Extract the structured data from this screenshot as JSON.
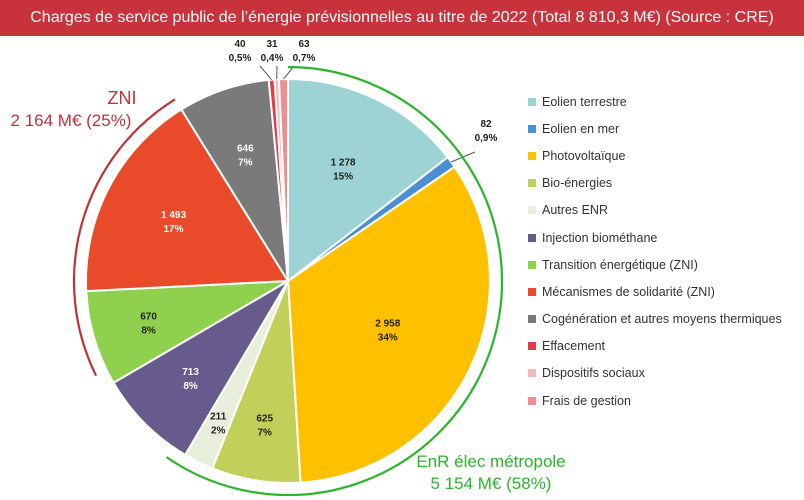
{
  "title": "Charges de service public de l’énergie prévisionnelles au titre de 2022 (Total 8 810,3 M€) (Source : CRE)",
  "colors": {
    "title_bg": "#c8323a",
    "zni": "#c0313a",
    "enr": "#2bb52b"
  },
  "groups": {
    "zni": {
      "name": "ZNI",
      "total": "2 164 M€ (25%)"
    },
    "enr": {
      "name": "EnR élec métropole",
      "total": "5 154 M€ (58%)"
    }
  },
  "chart_data": {
    "type": "pie",
    "title": "Charges de service public de l’énergie prévisionnelles au titre de 2022 (Total 8 810,3 M€) (Source : CRE)",
    "legend_position": "right",
    "slices": [
      {
        "name": "Eolien terrestre",
        "value": 1278,
        "value_label": "1 278",
        "percent_label": "15%",
        "color": "#9dd3d4"
      },
      {
        "name": "Eolien en mer",
        "value": 82,
        "value_label": "82",
        "percent_label": "0,9%",
        "color": "#4a8fd4"
      },
      {
        "name": "Photovoltaïque",
        "value": 2958,
        "value_label": "2 958",
        "percent_label": "34%",
        "color": "#ffc000"
      },
      {
        "name": "Bio-énergies",
        "value": 625,
        "value_label": "625",
        "percent_label": "7%",
        "color": "#c0d058"
      },
      {
        "name": "Autres ENR",
        "value": 211,
        "value_label": "211",
        "percent_label": "2%",
        "color": "#e7efdc"
      },
      {
        "name": "Injection biométhane",
        "value": 713,
        "value_label": "713",
        "percent_label": "8%",
        "color": "#675a8c"
      },
      {
        "name": "Transition énergétique (ZNI)",
        "value": 670,
        "value_label": "670",
        "percent_label": "8%",
        "color": "#8fd14f"
      },
      {
        "name": "Mécanismes de solidarité (ZNI)",
        "value": 1493,
        "value_label": "1 493",
        "percent_label": "17%",
        "color": "#e94b2a"
      },
      {
        "name": "Cogénération et autres moyens thermiques",
        "value": 646,
        "value_label": "646",
        "percent_label": "7%",
        "color": "#7a7a7a"
      },
      {
        "name": "Effacement",
        "value": 40,
        "value_label": "40",
        "percent_label": "0,5%",
        "color": "#e6394a"
      },
      {
        "name": "Dispositifs sociaux",
        "value": 31,
        "value_label": "31",
        "percent_label": "0,4%",
        "color": "#f5b6ba"
      },
      {
        "name": "Frais de gestion",
        "value": 63,
        "value_label": "63",
        "percent_label": "0,7%",
        "color": "#f08e8e"
      }
    ]
  }
}
